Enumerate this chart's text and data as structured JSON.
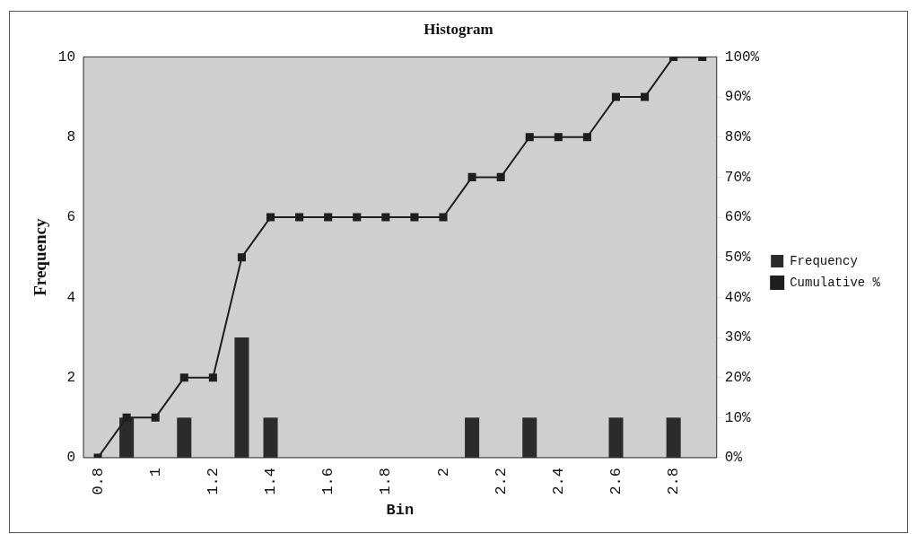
{
  "chart_data": {
    "type": "bar",
    "title": "Histogram",
    "xlabel": "Bin",
    "ylabel": "Frequency",
    "categories": [
      "0.8",
      null,
      "1",
      null,
      "1.2",
      null,
      "1.4",
      null,
      "1.6",
      null,
      "1.8",
      null,
      "2",
      null,
      "2.2",
      null,
      "2.4",
      null,
      "2.6",
      null,
      "2.8",
      null
    ],
    "series": [
      {
        "name": "Frequency",
        "color": "#2b2b2b",
        "values": [
          0,
          1,
          0,
          1,
          0,
          3,
          1,
          0,
          0,
          0,
          0,
          0,
          0,
          1,
          0,
          1,
          0,
          0,
          1,
          0,
          1,
          0
        ]
      },
      {
        "name": "Cumulative %",
        "type": "line",
        "axis": "y2",
        "color": "#1e1e1e",
        "values": [
          0,
          10,
          10,
          20,
          20,
          50,
          60,
          60,
          60,
          60,
          60,
          60,
          60,
          70,
          70,
          80,
          80,
          80,
          90,
          90,
          100,
          100
        ]
      }
    ],
    "ylim": [
      0,
      10
    ],
    "yticks": [
      0,
      2,
      4,
      6,
      8,
      10
    ],
    "y2lim": [
      0,
      100
    ],
    "y2ticks": [
      {
        "value": 0,
        "label": "0%"
      },
      {
        "value": 10,
        "label": "10%"
      },
      {
        "value": 20,
        "label": "20%"
      },
      {
        "value": 30,
        "label": "30%"
      },
      {
        "value": 40,
        "label": "40%"
      },
      {
        "value": 50,
        "label": "50%"
      },
      {
        "value": 60,
        "label": "60%"
      },
      {
        "value": 70,
        "label": "70%"
      },
      {
        "value": 80,
        "label": "80%"
      },
      {
        "value": 90,
        "label": "90%"
      },
      {
        "value": 100,
        "label": "100%"
      }
    ],
    "legend": "right",
    "marker": "square",
    "line_style": "solid"
  }
}
